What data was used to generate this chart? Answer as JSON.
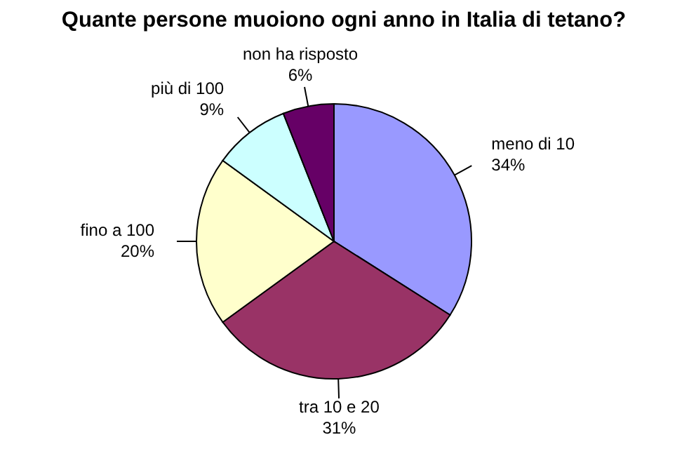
{
  "chart_data": {
    "type": "pie",
    "title": "Quante persone muoiono ogni anno in Italia di tetano?",
    "categories": [
      "meno di 10",
      "tra 10 e 20",
      "fino a 100",
      "più di 100",
      "non ha risposto"
    ],
    "values": [
      34,
      31,
      20,
      9,
      6
    ],
    "colors": [
      "#9999ff",
      "#993366",
      "#ffffcc",
      "#ccffff",
      "#660066"
    ],
    "value_labels": [
      "34%",
      "31%",
      "20%",
      "9%",
      "6%"
    ]
  }
}
